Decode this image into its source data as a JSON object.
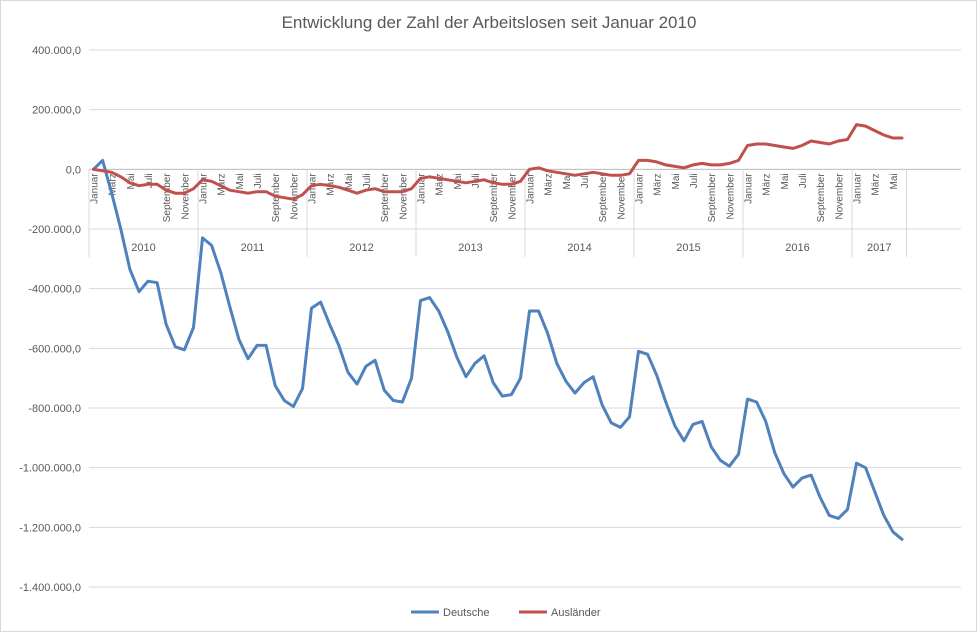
{
  "chart_data": {
    "type": "line",
    "title": "Entwicklung der Zahl der Arbeitslosen seit Januar 2010",
    "xlabel": "",
    "ylabel": "",
    "ylim": [
      -1400000,
      400000
    ],
    "ytick_step": 200000,
    "ytick_labels": [
      "400.000,0",
      "200.000,0",
      "0,0",
      "-200.000,0",
      "-400.000,0",
      "-600.000,0",
      "-800.000,0",
      "-1.000.000,0",
      "-1.200.000,0",
      "-1.400.000,0"
    ],
    "grid": true,
    "legend_position": "bottom",
    "month_labels": [
      "Januar",
      "März",
      "Mai",
      "Juli",
      "September",
      "November"
    ],
    "years": [
      "2010",
      "2011",
      "2012",
      "2013",
      "2014",
      "2015",
      "2016",
      "2017"
    ],
    "series": [
      {
        "name": "Deutsche",
        "color": "#4f81bd",
        "values": [
          0,
          30000,
          -80000,
          -200000,
          -335000,
          -410000,
          -375000,
          -380000,
          -520000,
          -595000,
          -605000,
          -530000,
          -230000,
          -255000,
          -345000,
          -460000,
          -570000,
          -635000,
          -590000,
          -590000,
          -725000,
          -775000,
          -795000,
          -735000,
          -465000,
          -445000,
          -520000,
          -590000,
          -680000,
          -720000,
          -660000,
          -640000,
          -740000,
          -775000,
          -780000,
          -700000,
          -440000,
          -430000,
          -475000,
          -545000,
          -630000,
          -695000,
          -650000,
          -625000,
          -715000,
          -760000,
          -755000,
          -700000,
          -475000,
          -475000,
          -550000,
          -650000,
          -710000,
          -750000,
          -715000,
          -695000,
          -790000,
          -850000,
          -865000,
          -830000,
          -610000,
          -620000,
          -690000,
          -780000,
          -860000,
          -910000,
          -855000,
          -845000,
          -930000,
          -975000,
          -995000,
          -955000,
          -770000,
          -780000,
          -845000,
          -950000,
          -1020000,
          -1065000,
          -1035000,
          -1025000,
          -1100000,
          -1160000,
          -1170000,
          -1140000,
          -985000,
          -1000000,
          -1080000,
          -1160000,
          -1215000,
          -1240000
        ]
      },
      {
        "name": "Ausländer",
        "color": "#c0504d",
        "values": [
          0,
          -5000,
          -10000,
          -25000,
          -45000,
          -55000,
          -50000,
          -50000,
          -70000,
          -80000,
          -80000,
          -65000,
          -35000,
          -40000,
          -55000,
          -70000,
          -75000,
          -80000,
          -75000,
          -75000,
          -90000,
          -95000,
          -100000,
          -85000,
          -55000,
          -50000,
          -55000,
          -60000,
          -70000,
          -80000,
          -70000,
          -65000,
          -75000,
          -75000,
          -75000,
          -65000,
          -30000,
          -25000,
          -30000,
          -35000,
          -40000,
          -45000,
          -40000,
          -35000,
          -45000,
          -50000,
          -50000,
          -40000,
          0,
          5000,
          -5000,
          -10000,
          -15000,
          -20000,
          -15000,
          -10000,
          -15000,
          -20000,
          -20000,
          -15000,
          30000,
          30000,
          25000,
          15000,
          10000,
          5000,
          15000,
          20000,
          15000,
          15000,
          20000,
          30000,
          80000,
          85000,
          85000,
          80000,
          75000,
          70000,
          80000,
          95000,
          90000,
          85000,
          95000,
          100000,
          150000,
          145000,
          130000,
          115000,
          105000,
          105000
        ]
      }
    ]
  }
}
